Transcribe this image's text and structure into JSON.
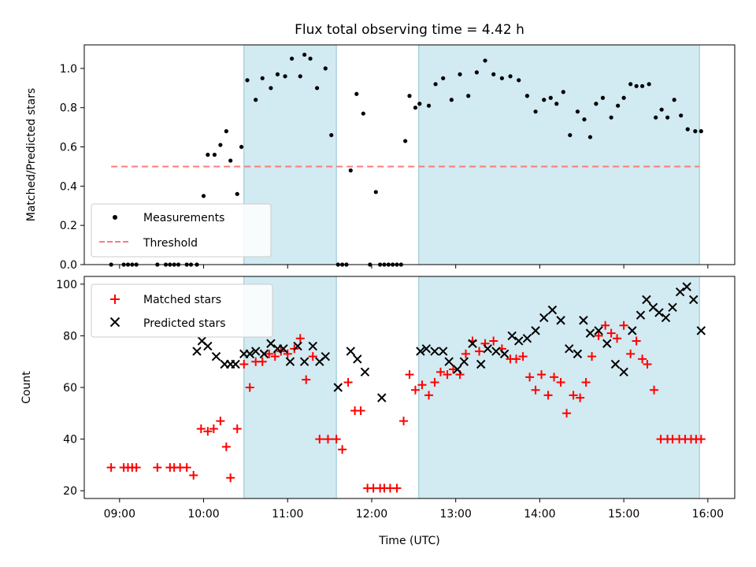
{
  "chart_data": [
    {
      "type": "scatter",
      "title": "Flux total observing time = 4.42 h",
      "xlabel": "",
      "ylabel": "Matched/Predicted stars",
      "xlim": [
        8.58,
        16.32
      ],
      "ylim": [
        0,
        1.12
      ],
      "yticks": [
        0.0,
        0.2,
        0.4,
        0.6,
        0.8,
        1.0
      ],
      "ytick_labels": [
        "0.0",
        "0.2",
        "0.4",
        "0.6",
        "0.8",
        "1.0"
      ],
      "xticks": [
        9,
        10,
        11,
        12,
        13,
        14,
        15,
        16
      ],
      "shaded_spans": [
        [
          10.48,
          11.58
        ],
        [
          12.56,
          15.9
        ]
      ],
      "shade_color": "#add8e6",
      "legend": {
        "placement": "lower-left",
        "entries": [
          "Measurements",
          "Threshold"
        ]
      },
      "threshold": {
        "name": "Threshold",
        "value": 0.5,
        "x_range": [
          8.9,
          15.9
        ],
        "color": "#ff7a7a"
      },
      "series": [
        {
          "name": "Measurements",
          "color": "#000000",
          "marker": "dot",
          "x": [
            8.9,
            9.05,
            9.1,
            9.15,
            9.2,
            9.45,
            9.55,
            9.6,
            9.65,
            9.7,
            9.8,
            9.85,
            9.92,
            10.0,
            10.05,
            10.13,
            10.2,
            10.27,
            10.32,
            10.4,
            10.45,
            10.52,
            10.62,
            10.7,
            10.8,
            10.88,
            10.97,
            11.05,
            11.15,
            11.2,
            11.27,
            11.35,
            11.45,
            11.52,
            11.6,
            11.65,
            11.7,
            11.75,
            11.82,
            11.9,
            11.98,
            12.05,
            12.1,
            12.15,
            12.2,
            12.25,
            12.3,
            12.35,
            12.4,
            12.45,
            12.52,
            12.57,
            12.68,
            12.76,
            12.85,
            12.95,
            13.05,
            13.15,
            13.25,
            13.35,
            13.45,
            13.55,
            13.65,
            13.75,
            13.85,
            13.95,
            14.05,
            14.13,
            14.2,
            14.28,
            14.36,
            14.45,
            14.53,
            14.6,
            14.67,
            14.75,
            14.85,
            14.93,
            15.0,
            15.08,
            15.15,
            15.22,
            15.3,
            15.38,
            15.45,
            15.52,
            15.6,
            15.68,
            15.76,
            15.85,
            15.92
          ],
          "values": [
            0.0,
            0.0,
            0.0,
            0.0,
            0.0,
            0.0,
            0.0,
            0.0,
            0.0,
            0.0,
            0.0,
            0.0,
            0.0,
            0.35,
            0.56,
            0.56,
            0.61,
            0.68,
            0.53,
            0.36,
            0.6,
            0.94,
            0.84,
            0.95,
            0.9,
            0.97,
            0.96,
            1.05,
            0.96,
            1.07,
            1.05,
            0.9,
            1.0,
            0.66,
            0.0,
            0.0,
            0.0,
            0.48,
            0.87,
            0.77,
            0.0,
            0.37,
            0.0,
            0.0,
            0.0,
            0.0,
            0.0,
            0.0,
            0.63,
            0.86,
            0.8,
            0.82,
            0.81,
            0.92,
            0.95,
            0.84,
            0.97,
            0.86,
            0.98,
            1.04,
            0.97,
            0.95,
            0.96,
            0.94,
            0.86,
            0.78,
            0.84,
            0.85,
            0.82,
            0.88,
            0.66,
            0.78,
            0.74,
            0.65,
            0.82,
            0.85,
            0.75,
            0.81,
            0.85,
            0.92,
            0.91,
            0.91,
            0.92,
            0.75,
            0.79,
            0.75,
            0.84,
            0.76,
            0.69,
            0.68,
            0.68
          ]
        }
      ]
    },
    {
      "type": "scatter",
      "title": "",
      "xlabel": "Time (UTC)",
      "ylabel": "Count",
      "xlim": [
        8.58,
        16.32
      ],
      "ylim": [
        17,
        103
      ],
      "yticks": [
        20,
        40,
        60,
        80,
        100
      ],
      "ytick_labels": [
        "20",
        "40",
        "60",
        "80",
        "100"
      ],
      "xticks": [
        9,
        10,
        11,
        12,
        13,
        14,
        15,
        16
      ],
      "xtick_labels": [
        "09:00",
        "10:00",
        "11:00",
        "12:00",
        "13:00",
        "14:00",
        "15:00",
        "16:00"
      ],
      "shaded_spans": [
        [
          10.48,
          11.58
        ],
        [
          12.56,
          15.9
        ]
      ],
      "shade_color": "#add8e6",
      "legend": {
        "placement": "upper-left",
        "entries": [
          "Matched stars",
          "Predicted stars"
        ]
      },
      "series": [
        {
          "name": "Matched stars",
          "color": "#ff0000",
          "marker": "plus",
          "x": [
            8.9,
            9.05,
            9.1,
            9.15,
            9.2,
            9.45,
            9.6,
            9.65,
            9.72,
            9.8,
            9.88,
            9.97,
            10.05,
            10.12,
            10.2,
            10.27,
            10.32,
            10.4,
            10.48,
            10.55,
            10.62,
            10.7,
            10.78,
            10.85,
            10.92,
            11.0,
            11.08,
            11.15,
            11.22,
            11.3,
            11.38,
            11.48,
            11.58,
            11.65,
            11.72,
            11.8,
            11.87,
            11.95,
            12.02,
            12.1,
            12.15,
            12.22,
            12.3,
            12.38,
            12.45,
            12.52,
            12.6,
            12.68,
            12.75,
            12.82,
            12.9,
            12.97,
            13.05,
            13.12,
            13.2,
            13.28,
            13.35,
            13.45,
            13.55,
            13.65,
            13.72,
            13.8,
            13.88,
            13.95,
            14.02,
            14.1,
            14.17,
            14.25,
            14.32,
            14.4,
            14.48,
            14.55,
            14.62,
            14.7,
            14.78,
            14.85,
            14.92,
            15.0,
            15.08,
            15.15,
            15.22,
            15.28,
            15.36,
            15.44,
            15.52,
            15.58,
            15.66,
            15.73,
            15.8,
            15.86,
            15.92
          ],
          "values": [
            29,
            29,
            29,
            29,
            29,
            29,
            29,
            29,
            29,
            29,
            26,
            44,
            43,
            44,
            47,
            37,
            25,
            44,
            69,
            60,
            70,
            70,
            73,
            72,
            74,
            73,
            75,
            79,
            63,
            72,
            40,
            40,
            40,
            36,
            62,
            51,
            51,
            21,
            21,
            21,
            21,
            21,
            21,
            47,
            65,
            59,
            61,
            57,
            62,
            66,
            65,
            67,
            65,
            73,
            78,
            74,
            77,
            78,
            75,
            71,
            71,
            72,
            64,
            59,
            65,
            57,
            64,
            62,
            50,
            57,
            56,
            62,
            72,
            80,
            84,
            81,
            79,
            84,
            73,
            78,
            71,
            69,
            59,
            40,
            40,
            40,
            40,
            40,
            40,
            40,
            40
          ],
          "mark_count": 91
        },
        {
          "name": "Predicted stars",
          "color": "#000000",
          "marker": "x",
          "x": [
            9.92,
            9.98,
            10.05,
            10.15,
            10.25,
            10.32,
            10.38,
            10.48,
            10.55,
            10.62,
            10.72,
            10.8,
            10.88,
            10.95,
            11.03,
            11.12,
            11.2,
            11.3,
            11.38,
            11.45,
            11.6,
            11.75,
            11.83,
            11.92,
            12.12,
            12.58,
            12.65,
            12.75,
            12.85,
            12.92,
            13.02,
            13.1,
            13.2,
            13.3,
            13.38,
            13.48,
            13.58,
            13.67,
            13.75,
            13.85,
            13.95,
            14.05,
            14.15,
            14.25,
            14.35,
            14.45,
            14.52,
            14.6,
            14.7,
            14.8,
            14.9,
            15.0,
            15.1,
            15.2,
            15.27,
            15.35,
            15.42,
            15.5,
            15.58,
            15.67,
            15.75,
            15.83,
            15.92
          ],
          "values": [
            74,
            78,
            76,
            72,
            69,
            69,
            69,
            73,
            73,
            74,
            73,
            77,
            75,
            75,
            70,
            76,
            70,
            76,
            70,
            72,
            60,
            74,
            71,
            66,
            56,
            74,
            75,
            74,
            74,
            70,
            67,
            70,
            77,
            69,
            75,
            74,
            73,
            80,
            78,
            79,
            82,
            87,
            90,
            86,
            75,
            73,
            86,
            81,
            82,
            77,
            69,
            66,
            82,
            88,
            94,
            91,
            89,
            87,
            91,
            97,
            99,
            94,
            82
          ]
        }
      ]
    }
  ]
}
